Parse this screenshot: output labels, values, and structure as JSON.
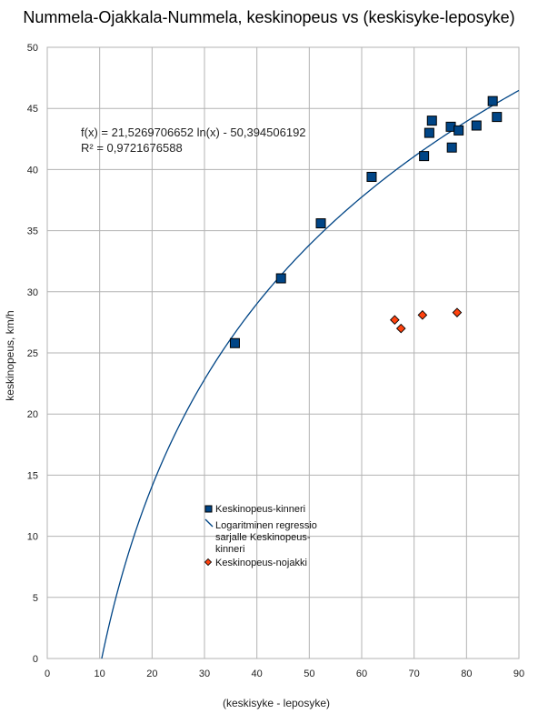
{
  "chart_data": {
    "type": "scatter",
    "title": "Nummela-Ojakkala-Nummela, keskinopeus vs (keskisyke-leposyke)",
    "xlabel": "(keskisyke - leposyke)",
    "ylabel": "keskinopeus, km/h",
    "xlim": [
      0,
      90
    ],
    "ylim": [
      0,
      50
    ],
    "x_ticks": [
      0,
      10,
      20,
      30,
      40,
      50,
      60,
      70,
      80,
      90
    ],
    "y_ticks": [
      0,
      5,
      10,
      15,
      20,
      25,
      30,
      35,
      40,
      45,
      50
    ],
    "grid": true,
    "legend_position": "center-left",
    "series": [
      {
        "name": "Keskinopeus-kinneri",
        "marker": "square",
        "color": "#004586",
        "points": [
          [
            35.8,
            25.8
          ],
          [
            44.6,
            31.1
          ],
          [
            52.2,
            35.6
          ],
          [
            61.9,
            39.4
          ],
          [
            71.9,
            41.1
          ],
          [
            72.9,
            43.0
          ],
          [
            73.4,
            44.0
          ],
          [
            77.0,
            43.5
          ],
          [
            77.2,
            41.8
          ],
          [
            78.5,
            43.2
          ],
          [
            81.9,
            43.6
          ],
          [
            85.0,
            45.6
          ],
          [
            85.8,
            44.3
          ]
        ]
      },
      {
        "name": "Keskinopeus-nojakki",
        "marker": "diamond",
        "color": "#ff420e",
        "points": [
          [
            66.3,
            27.7
          ],
          [
            67.5,
            27.0
          ],
          [
            71.6,
            28.1
          ],
          [
            78.2,
            28.3
          ]
        ]
      }
    ],
    "trendline": {
      "name_lines": [
        "Logaritminen regressio",
        "sarjalle Keskinopeus-",
        "kinneri"
      ],
      "type": "logarithmic",
      "a": 21.5269706652,
      "b": -50.394506192,
      "color": "#004586",
      "equation_text": "f(x) = 21,5269706652 ln(x) - 50,394506192",
      "r2_text": "R² = 0,9721676588"
    }
  }
}
